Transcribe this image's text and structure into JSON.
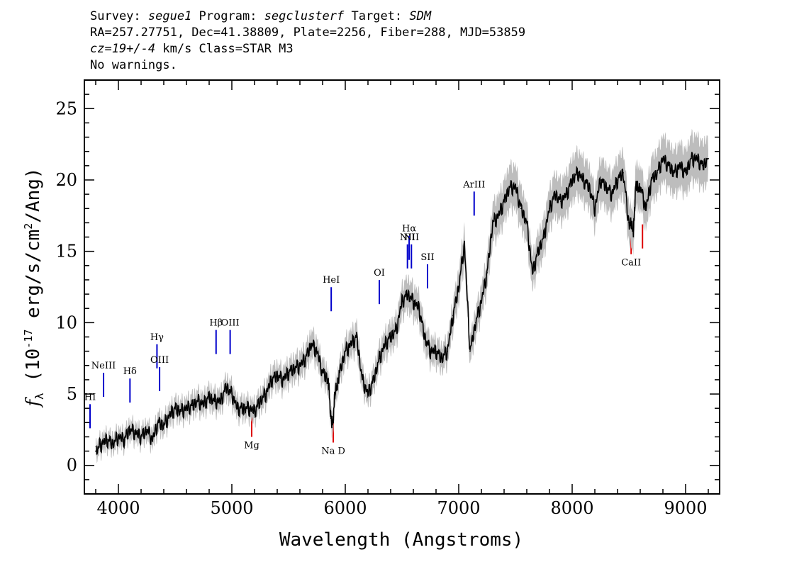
{
  "header": {
    "line1": {
      "survey_label": "Survey: ",
      "survey": "segue1",
      "program_label": " Program: ",
      "program": "segclusterf",
      "target_label": " Target: ",
      "target": "SDM"
    },
    "line2": "RA=257.27751, Dec=41.38809, Plate=2256, Fiber=288, MJD=53859",
    "line3": {
      "cz": "cz=19+/-4",
      "rest": " km/s Class=STAR M3"
    },
    "line4": "No warnings."
  },
  "chart_data": {
    "type": "line",
    "xlabel": "Wavelength (Angstroms)",
    "ylabel": "f_λ (10^-17 erg/s/cm^2/Ang)",
    "xlim": [
      3700,
      9300
    ],
    "ylim": [
      -2,
      27
    ],
    "x_ticks": [
      4000,
      5000,
      6000,
      7000,
      8000,
      9000
    ],
    "y_ticks": [
      0,
      5,
      10,
      15,
      20,
      25
    ],
    "colors": {
      "spectrum": "#000000",
      "error": "#bdbdbd",
      "emission": "#0000cc",
      "absorption": "#dd0000"
    },
    "series": [
      {
        "x": [
          3800,
          3850,
          3900,
          3950,
          4000,
          4050,
          4100,
          4150,
          4200,
          4250,
          4300,
          4350,
          4400,
          4450,
          4500,
          4550,
          4600,
          4650,
          4700,
          4750,
          4800,
          4850,
          4900,
          4950,
          5000,
          5050,
          5100,
          5150,
          5200,
          5250,
          5300,
          5350,
          5400,
          5450,
          5500,
          5550,
          5600,
          5650,
          5700,
          5750,
          5800,
          5850,
          5870,
          5890,
          5910,
          5950,
          6000,
          6050,
          6100,
          6150,
          6200,
          6250,
          6300,
          6350,
          6400,
          6450,
          6500,
          6550,
          6600,
          6650,
          6700,
          6750,
          6800,
          6850,
          6900,
          6950,
          7000,
          7050,
          7100,
          7150,
          7200,
          7250,
          7300,
          7350,
          7400,
          7450,
          7500,
          7550,
          7600,
          7650,
          7700,
          7750,
          7800,
          7850,
          7900,
          7950,
          8000,
          8050,
          8100,
          8150,
          8200,
          8250,
          8300,
          8350,
          8400,
          8450,
          8500,
          8540,
          8560,
          8600,
          8650,
          8700,
          8750,
          8800,
          8850,
          8900,
          8950,
          9000,
          9050,
          9100,
          9150,
          9200
        ],
        "y": [
          1.0,
          1.5,
          1.8,
          1.5,
          2.0,
          1.8,
          2.5,
          2.3,
          2.0,
          2.5,
          1.8,
          3.0,
          2.8,
          3.5,
          4.0,
          3.8,
          4.0,
          4.2,
          4.5,
          4.3,
          4.8,
          4.5,
          4.5,
          5.5,
          5.0,
          4.0,
          4.0,
          4.0,
          3.8,
          4.5,
          5.0,
          6.0,
          6.3,
          6.0,
          6.5,
          6.8,
          7.0,
          7.5,
          8.5,
          8.0,
          6.5,
          6.0,
          3.5,
          3.0,
          5.0,
          6.5,
          8.0,
          8.5,
          9.0,
          6.0,
          5.0,
          6.0,
          7.5,
          8.5,
          9.0,
          9.5,
          11.5,
          12.0,
          11.5,
          11.0,
          9.0,
          8.0,
          8.0,
          7.5,
          8.0,
          10.5,
          12.5,
          15.5,
          8.0,
          10.0,
          11.5,
          13.5,
          17.0,
          17.5,
          18.5,
          19.5,
          19.5,
          18.0,
          17.0,
          13.5,
          15.0,
          16.0,
          18.0,
          19.0,
          18.5,
          19.0,
          20.0,
          20.5,
          20.0,
          19.5,
          18.0,
          20.0,
          19.5,
          19.0,
          20.0,
          20.5,
          17.0,
          16.5,
          19.5,
          19.5,
          18.0,
          20.0,
          20.5,
          21.5,
          21.0,
          20.5,
          21.0,
          20.5,
          21.5,
          21.5,
          21.0,
          21.5
        ]
      }
    ],
    "emission_lines": [
      {
        "label": "HI",
        "wave": 3750,
        "y": 2.6
      },
      {
        "label": "NeIII",
        "wave": 3869,
        "y": 4.8
      },
      {
        "label": "Hδ",
        "wave": 4102,
        "y": 4.4
      },
      {
        "label": "Hγ",
        "wave": 4340,
        "y": 6.8
      },
      {
        "label": "OIII",
        "wave": 4363,
        "y": 5.2
      },
      {
        "label": "Hβ",
        "wave": 4861,
        "y": 7.8
      },
      {
        "label": "OIII",
        "wave": 4985,
        "y": 7.8
      },
      {
        "label": "HeI",
        "wave": 5876,
        "y": 10.8
      },
      {
        "label": "OI",
        "wave": 6300,
        "y": 11.3
      },
      {
        "label": "NII",
        "wave": 6548,
        "y": 13.8
      },
      {
        "label": "Hα",
        "wave": 6563,
        "y": 14.4
      },
      {
        "label": "NII",
        "wave": 6583,
        "y": 13.8
      },
      {
        "label": "SII",
        "wave": 6725,
        "y": 12.4
      },
      {
        "label": "ArIII",
        "wave": 7136,
        "y": 17.5
      }
    ],
    "absorption_lines": [
      {
        "label": "Mg",
        "wave": 5175,
        "y": 2.0
      },
      {
        "label": "Na D",
        "wave": 5894,
        "y": 1.6
      },
      {
        "label": "CaII",
        "wave": 8520,
        "y": 14.8
      },
      {
        "label": "",
        "wave": 8620,
        "y": 15.2
      }
    ]
  }
}
